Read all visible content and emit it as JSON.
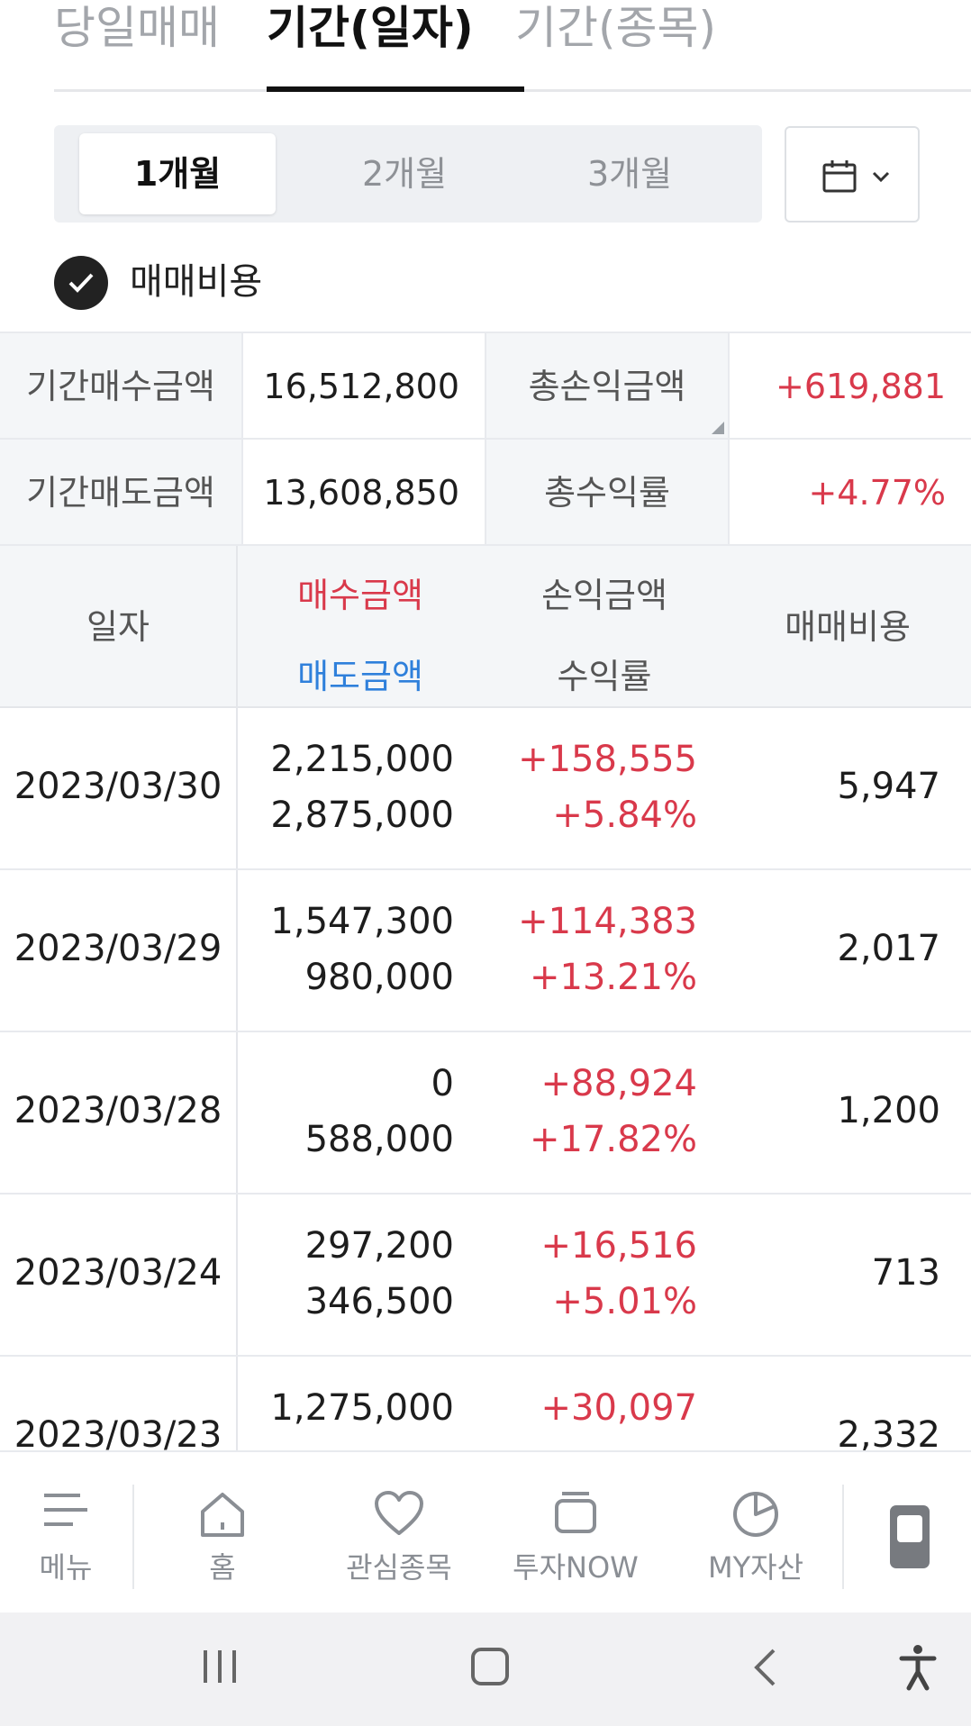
{
  "tabs": [
    {
      "label": "당일매매"
    },
    {
      "label": "기간(일자)"
    },
    {
      "label": "기간(종목)"
    }
  ],
  "period": {
    "options": [
      "1개월",
      "2개월",
      "3개월"
    ],
    "selected": "1개월"
  },
  "fee_toggle": {
    "label": "매매비용",
    "checked": true
  },
  "summary": {
    "buy_label": "기간매수금액",
    "buy_value": "16,512,800",
    "pl_label": "총손익금액",
    "pl_value": "+619,881",
    "sell_label": "기간매도금액",
    "sell_value": "13,608,850",
    "rate_label": "총수익률",
    "rate_value": "+4.77%"
  },
  "table": {
    "headers": {
      "date": "일자",
      "buy": "매수금액",
      "sell": "매도금액",
      "pl": "손익금액",
      "rate": "수익률",
      "fee": "매매비용"
    },
    "rows": [
      {
        "date": "2023/03/30",
        "buy": "2,215,000",
        "sell": "2,875,000",
        "pl": "+158,555",
        "rate": "+5.84%",
        "fee": "5,947"
      },
      {
        "date": "2023/03/29",
        "buy": "1,547,300",
        "sell": "980,000",
        "pl": "+114,383",
        "rate": "+13.21%",
        "fee": "2,017"
      },
      {
        "date": "2023/03/28",
        "buy": "0",
        "sell": "588,000",
        "pl": "+88,924",
        "rate": "+17.82%",
        "fee": "1,200"
      },
      {
        "date": "2023/03/24",
        "buy": "297,200",
        "sell": "346,500",
        "pl": "+16,516",
        "rate": "+5.01%",
        "fee": "713"
      },
      {
        "date": "2023/03/23",
        "buy": "1,275,000",
        "sell": "",
        "pl": "+30,097",
        "rate": "",
        "fee": "2,332"
      }
    ]
  },
  "bottom_nav": [
    {
      "label": "메뉴",
      "icon": "menu-icon"
    },
    {
      "label": "홈",
      "icon": "home-icon"
    },
    {
      "label": "관심종목",
      "icon": "heart-icon"
    },
    {
      "label": "투자NOW",
      "icon": "window-stack-icon"
    },
    {
      "label": "MY자산",
      "icon": "pie-chart-icon"
    }
  ],
  "colors": {
    "profit": "#d9394b",
    "sell": "#2f80db"
  }
}
